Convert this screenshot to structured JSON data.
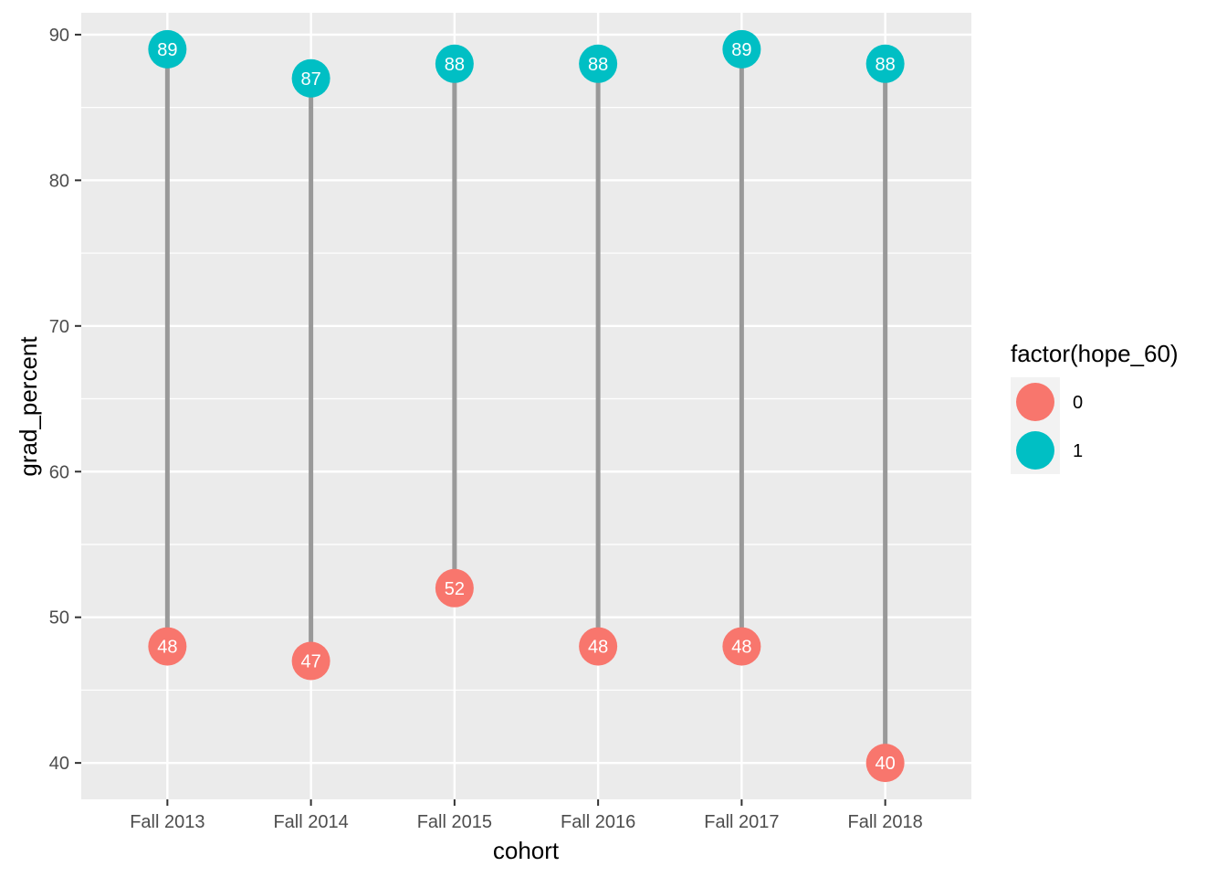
{
  "chart_data": {
    "type": "scatter",
    "xlabel": "cohort",
    "ylabel": "grad_percent",
    "categories": [
      "Fall 2013",
      "Fall 2014",
      "Fall 2015",
      "Fall 2016",
      "Fall 2017",
      "Fall 2018"
    ],
    "ylim": [
      37.5,
      91.5
    ],
    "y_ticks": [
      40,
      50,
      60,
      70,
      80,
      90
    ],
    "grid": true,
    "legend": {
      "title": "factor(hope_60)",
      "placement": "right"
    },
    "series": [
      {
        "name": "0",
        "color": "#F8766D",
        "values": [
          48,
          47,
          52,
          48,
          48,
          40
        ]
      },
      {
        "name": "1",
        "color": "#00BFC4",
        "values": [
          89,
          87,
          88,
          88,
          89,
          88
        ]
      }
    ],
    "segment_color": "#999999",
    "panel_background": "#EBEBEB"
  }
}
